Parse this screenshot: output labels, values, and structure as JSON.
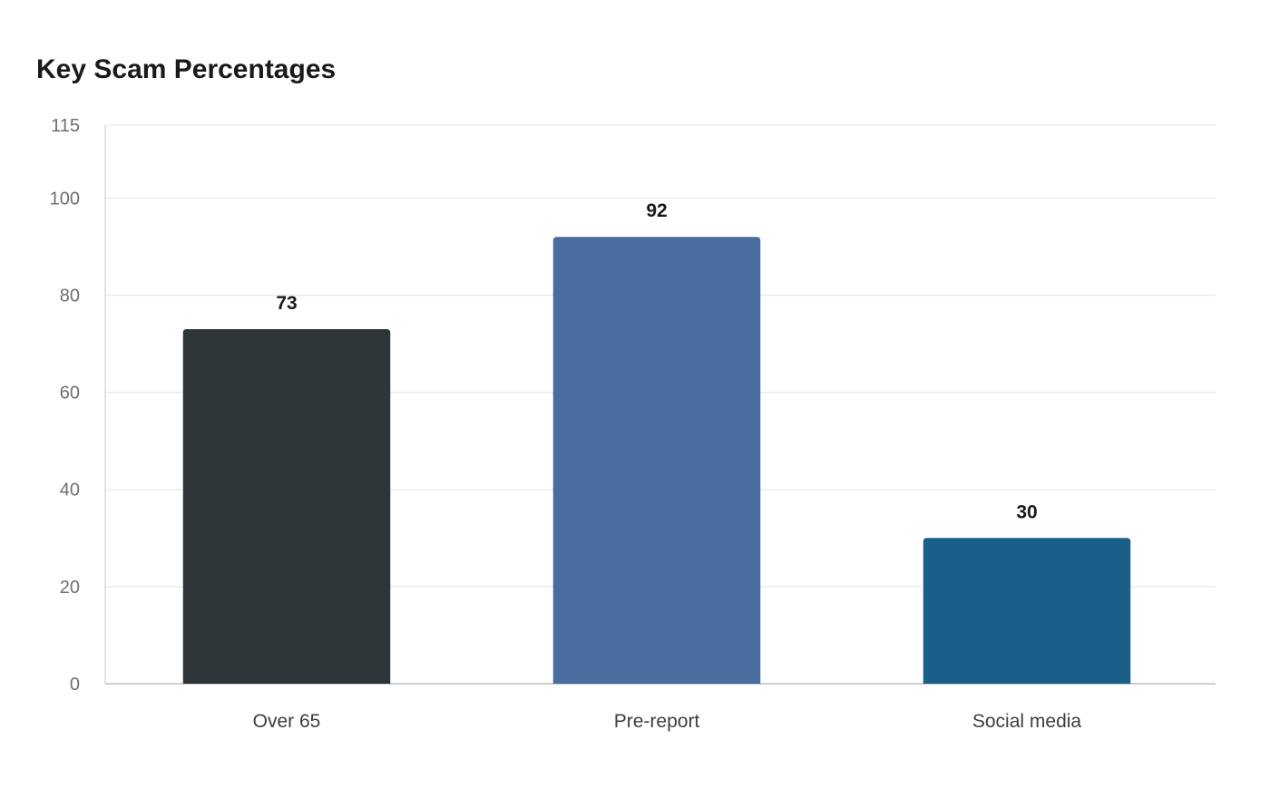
{
  "chart_data": {
    "type": "bar",
    "title": "Key Scam Percentages",
    "xlabel": "",
    "ylabel": "",
    "categories": [
      "Over 65",
      "Pre-report",
      "Social media"
    ],
    "values": [
      73,
      92,
      30
    ],
    "value_labels": [
      "73",
      "92",
      "30"
    ],
    "ylim": [
      0,
      115
    ],
    "yticks": [
      0,
      20,
      40,
      60,
      80,
      100,
      115
    ],
    "grid": true,
    "legend": "none",
    "colors": [
      "#2e3538",
      "#4a6da0",
      "#186087"
    ]
  }
}
